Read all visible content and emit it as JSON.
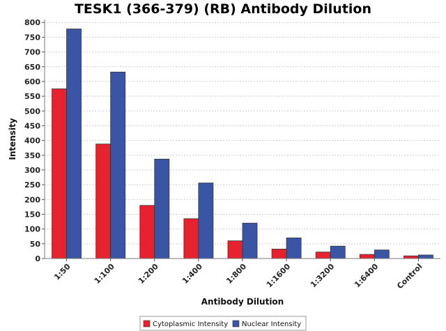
{
  "chart_data": {
    "type": "bar",
    "title": "TESK1 (366-379) (RB) Antibody Dilution",
    "xlabel": "Antibody Dilution",
    "ylabel": "Intensity",
    "categories": [
      "1:50",
      "1:100",
      "1:200",
      "1:400",
      "1:800",
      "1:1600",
      "1:3200",
      "1:6400",
      "Control"
    ],
    "series": [
      {
        "name": "Cytoplasmic Intensity",
        "color": "#e8212e",
        "values": [
          575,
          388,
          180,
          135,
          60,
          32,
          22,
          14,
          9
        ]
      },
      {
        "name": "Nuclear Intensity",
        "color": "#3a55a6",
        "values": [
          778,
          632,
          337,
          256,
          120,
          70,
          42,
          29,
          12
        ]
      }
    ],
    "ylim": [
      0,
      810
    ],
    "yticks": [
      0,
      50,
      100,
      150,
      200,
      250,
      300,
      350,
      400,
      450,
      500,
      550,
      600,
      650,
      700,
      750,
      800
    ],
    "grid": true,
    "legend_position": "bottom"
  }
}
